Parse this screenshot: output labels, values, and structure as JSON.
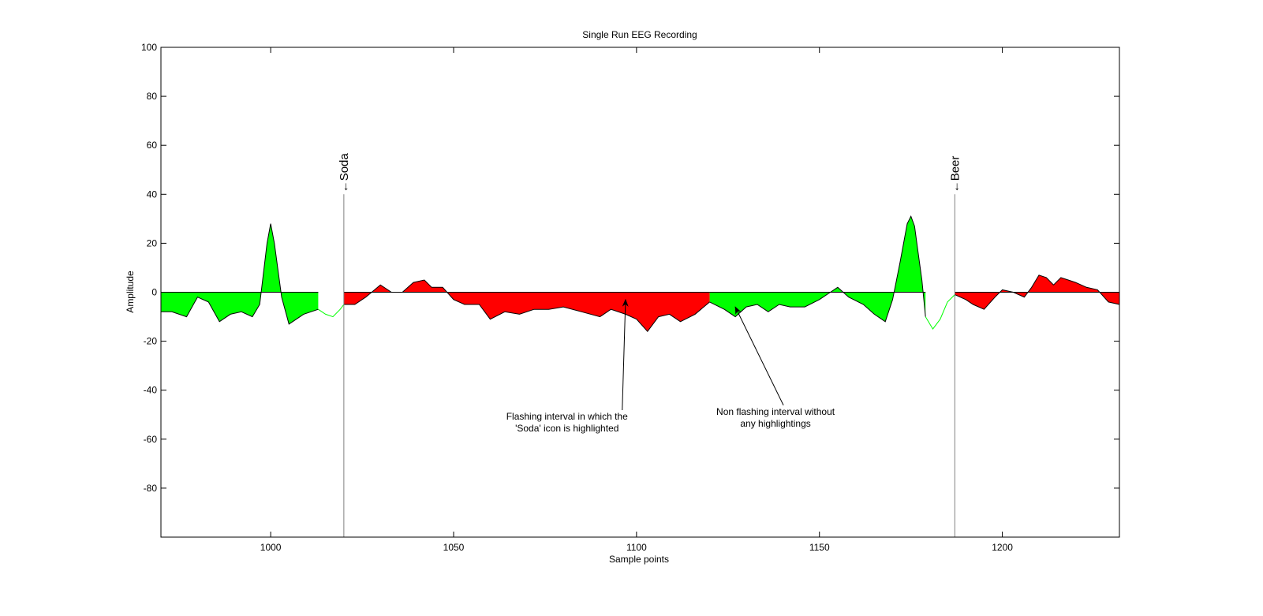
{
  "chart_data": {
    "type": "area",
    "title": "Single Run EEG Recording",
    "xlabel": "Sample points",
    "ylabel": "Amplitude",
    "xlim": [
      970,
      1232
    ],
    "ylim": [
      -100,
      100
    ],
    "xticks": [
      1000,
      1050,
      1100,
      1150,
      1200
    ],
    "yticks": [
      100,
      80,
      60,
      40,
      20,
      0,
      -20,
      -40,
      -60,
      -80
    ],
    "colors": {
      "red": "#ff0000",
      "green": "#00ff00",
      "line": "#000000",
      "marker": "#808080"
    },
    "series": [
      {
        "fill": "green",
        "x": [
          970,
          973,
          977,
          980,
          983,
          986,
          989,
          992,
          995,
          997,
          999,
          1000,
          1001,
          1003,
          1005,
          1007,
          1009,
          1011,
          1013
        ],
        "y": [
          -8,
          -8,
          -10,
          -2,
          -4,
          -12,
          -9,
          -8,
          -10,
          -5,
          20,
          28,
          20,
          -2,
          -13,
          -11,
          -9,
          -8,
          -7
        ]
      },
      {
        "fill": "none",
        "x": [
          1013,
          1015,
          1017,
          1019,
          1020
        ],
        "y": [
          -7,
          -9,
          -10,
          -7,
          -5
        ]
      },
      {
        "fill": "red",
        "x": [
          1020,
          1023,
          1026,
          1030,
          1033,
          1036,
          1039,
          1042,
          1044,
          1047,
          1050,
          1053,
          1057,
          1060,
          1064,
          1068,
          1072,
          1076,
          1080,
          1085,
          1090,
          1093,
          1097,
          1100,
          1103,
          1106,
          1109,
          1112,
          1116,
          1120
        ],
        "y": [
          -5,
          -5,
          -2,
          3,
          0,
          0,
          4,
          5,
          2,
          2,
          -3,
          -5,
          -5,
          -11,
          -8,
          -9,
          -7,
          -7,
          -6,
          -8,
          -10,
          -7,
          -9,
          -11,
          -16,
          -10,
          -9,
          -12,
          -9,
          -4
        ]
      },
      {
        "fill": "green",
        "x": [
          1120,
          1124,
          1127,
          1130,
          1133,
          1136,
          1139,
          1142,
          1146,
          1150,
          1153,
          1155,
          1158,
          1162,
          1165,
          1168,
          1170,
          1172,
          1174,
          1175,
          1176,
          1177,
          1178,
          1179
        ],
        "y": [
          -4,
          -7,
          -10,
          -6,
          -5,
          -8,
          -5,
          -6,
          -6,
          -3,
          0,
          2,
          -2,
          -5,
          -9,
          -12,
          -3,
          12,
          28,
          31,
          27,
          16,
          5,
          -10
        ]
      },
      {
        "fill": "none",
        "x": [
          1179,
          1181,
          1183,
          1185,
          1187
        ],
        "y": [
          -10,
          -15,
          -11,
          -4,
          -1
        ]
      },
      {
        "fill": "red",
        "x": [
          1187,
          1190,
          1192,
          1195,
          1198,
          1200,
          1203,
          1206,
          1208,
          1210,
          1212,
          1214,
          1216,
          1218,
          1220,
          1223,
          1226,
          1229,
          1232
        ],
        "y": [
          -1,
          -3,
          -5,
          -7,
          -2,
          1,
          0,
          -2,
          2,
          7,
          6,
          3,
          6,
          5,
          4,
          2,
          1,
          -4,
          -5
        ]
      }
    ],
    "markers": [
      {
        "x": 1020,
        "label": "←Soda",
        "top": 40
      },
      {
        "x": 1187,
        "label": "←Beer",
        "top": 40
      }
    ],
    "annotations": [
      {
        "lines": [
          "Flashing interval in which the",
          "'Soda' icon is highlighted"
        ],
        "text_x": 1081,
        "text_y": -52,
        "arrow_to": [
          1097,
          -3
        ]
      },
      {
        "lines": [
          "Non flashing interval without",
          "any highlightings"
        ],
        "text_x": 1138,
        "text_y": -50,
        "arrow_to": [
          1127,
          -6
        ]
      }
    ]
  }
}
